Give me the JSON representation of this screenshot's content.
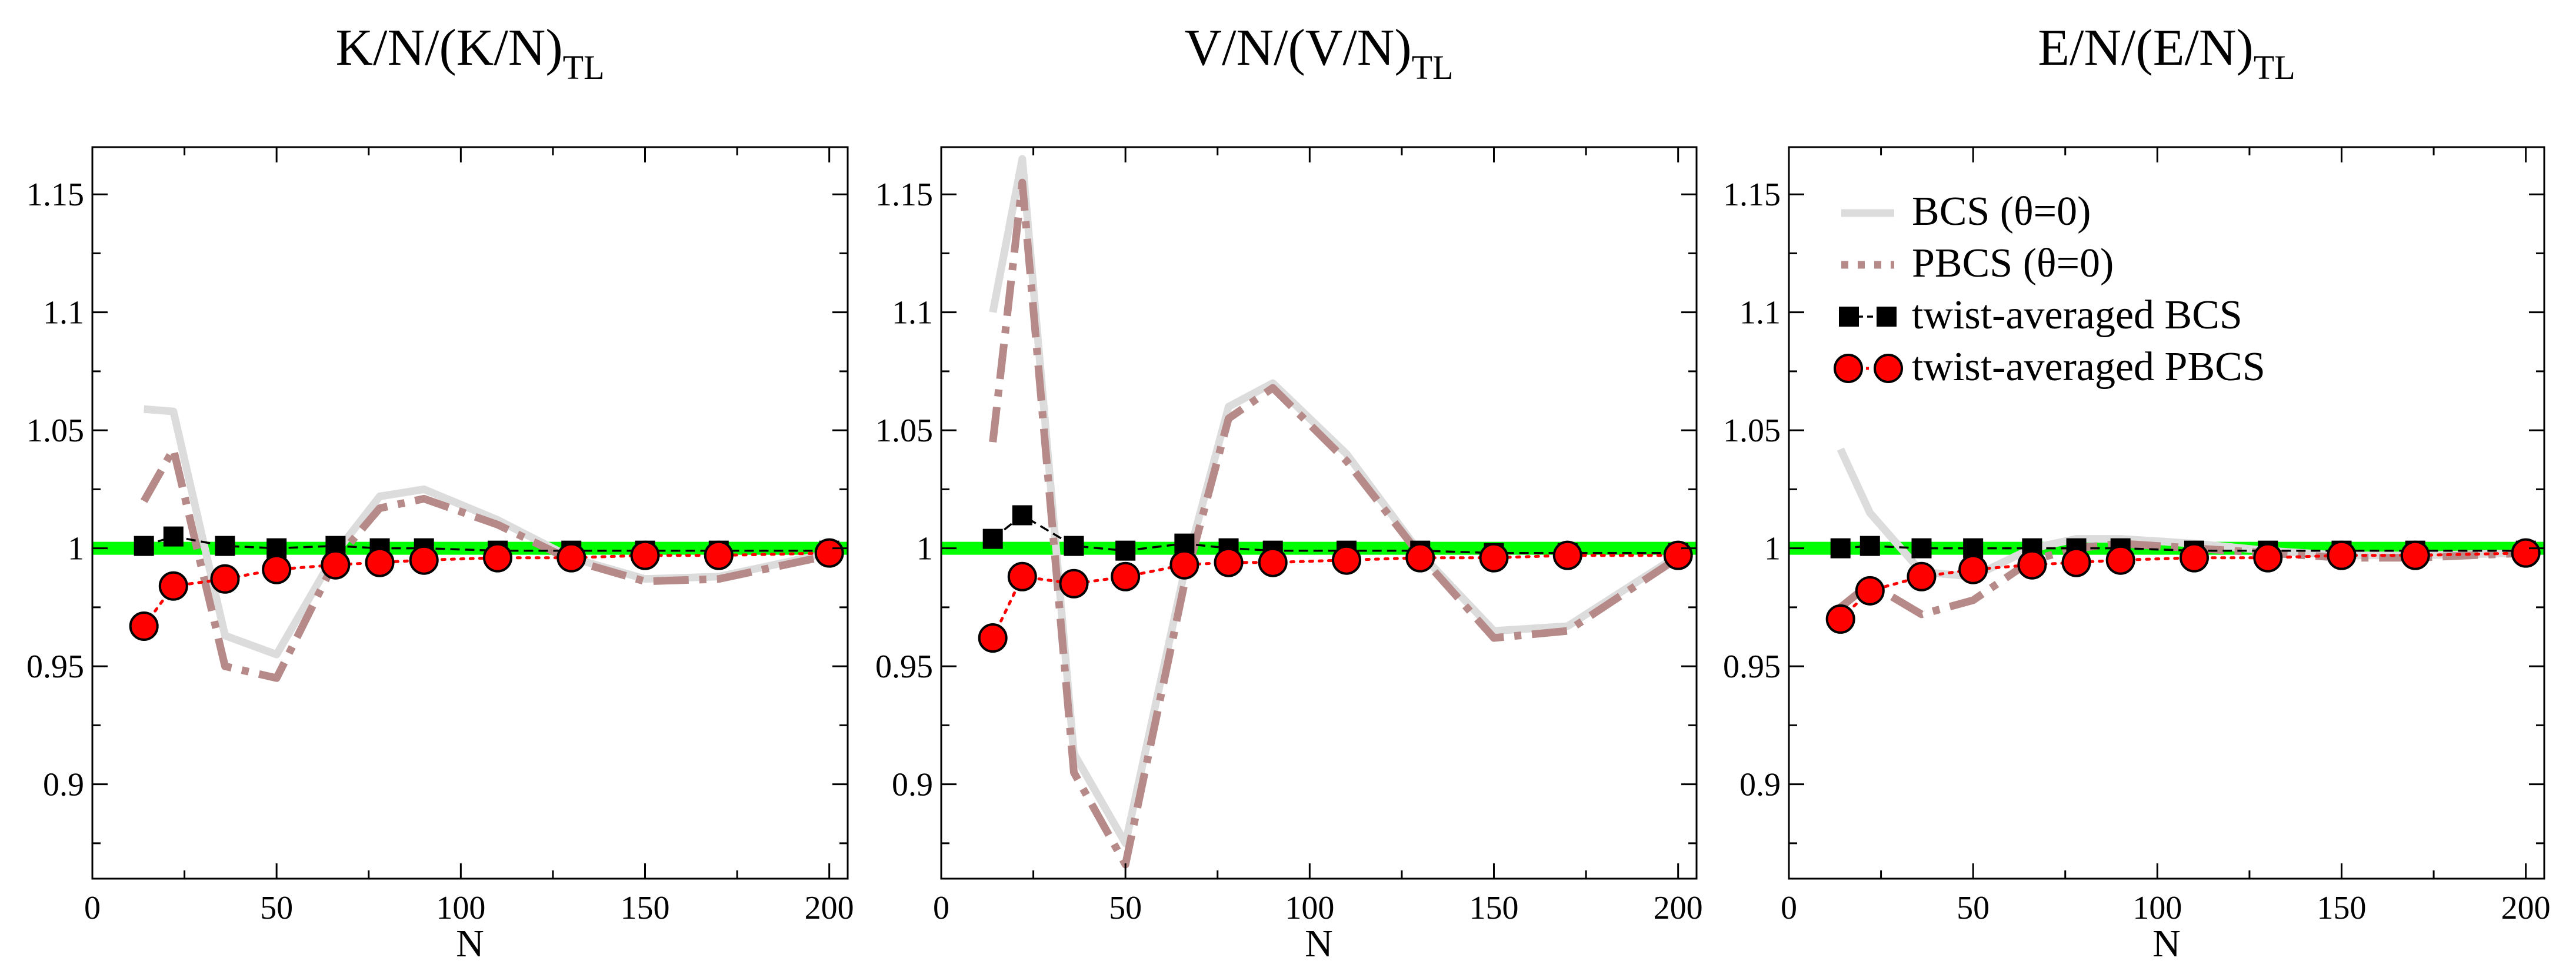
{
  "chart_data": [
    {
      "type": "line",
      "title_main": "K/N/(K/N)",
      "title_sub": "TL",
      "xlabel": "N",
      "ylabel": "",
      "xlim": [
        0,
        205
      ],
      "ylim": [
        0.86,
        1.17
      ],
      "xticks": [
        "0",
        "50",
        "100",
        "150",
        "200"
      ],
      "yticks": [
        "0.9",
        "0.95",
        "1",
        "1.05",
        "1.1",
        "1.15"
      ],
      "reference_line": 1.0,
      "series": [
        {
          "name": "BCS (θ=0)",
          "x": [
            14,
            22,
            36,
            50,
            66,
            78,
            90,
            110,
            130,
            150,
            170,
            200
          ],
          "y": [
            1.059,
            1.058,
            0.963,
            0.955,
            0.998,
            1.022,
            1.025,
            1.012,
            0.996,
            0.987,
            0.988,
            0.998
          ]
        },
        {
          "name": "PBCS (θ=0)",
          "x": [
            14,
            22,
            36,
            50,
            66,
            78,
            90,
            110,
            130,
            150,
            170,
            200
          ],
          "y": [
            1.02,
            1.042,
            0.95,
            0.945,
            0.995,
            1.017,
            1.021,
            1.01,
            0.995,
            0.986,
            0.987,
            0.997
          ]
        },
        {
          "name": "twist-averaged BCS",
          "x": [
            14,
            22,
            36,
            50,
            66,
            78,
            90,
            110,
            130,
            150,
            170,
            200
          ],
          "y": [
            1.001,
            1.005,
            1.001,
            1.0,
            1.001,
            1.0,
            1.0,
            0.999,
            0.999,
            0.999,
            0.999,
            0.999
          ]
        },
        {
          "name": "twist-averaged PBCS",
          "x": [
            14,
            22,
            36,
            50,
            66,
            78,
            90,
            110,
            130,
            150,
            170,
            200
          ],
          "y": [
            0.967,
            0.984,
            0.987,
            0.991,
            0.993,
            0.994,
            0.995,
            0.996,
            0.996,
            0.997,
            0.997,
            0.998
          ]
        }
      ]
    },
    {
      "type": "line",
      "title_main": "V/N/(V/N)",
      "title_sub": "TL",
      "xlabel": "N",
      "ylabel": "",
      "xlim": [
        0,
        205
      ],
      "ylim": [
        0.86,
        1.17
      ],
      "xticks": [
        "0",
        "50",
        "100",
        "150",
        "200"
      ],
      "yticks": [
        "0.9",
        "0.95",
        "1",
        "1.05",
        "1.1",
        "1.15"
      ],
      "reference_line": 1.0,
      "series": [
        {
          "name": "BCS (θ=0)",
          "x": [
            14,
            22,
            36,
            50,
            66,
            78,
            90,
            110,
            130,
            150,
            170,
            200
          ],
          "y": [
            1.1,
            1.165,
            0.913,
            0.875,
            0.99,
            1.06,
            1.07,
            1.04,
            0.998,
            0.965,
            0.967,
            0.997
          ]
        },
        {
          "name": "PBCS (θ=0)",
          "x": [
            14,
            22,
            36,
            50,
            66,
            78,
            90,
            110,
            130,
            150,
            170,
            200
          ],
          "y": [
            1.045,
            1.155,
            0.905,
            0.866,
            0.985,
            1.055,
            1.068,
            1.037,
            0.997,
            0.962,
            0.965,
            0.996
          ]
        },
        {
          "name": "twist-averaged BCS",
          "x": [
            14,
            22,
            36,
            50,
            66,
            78,
            90,
            110,
            130,
            150,
            170,
            200
          ],
          "y": [
            1.004,
            1.014,
            1.001,
            0.999,
            1.002,
            1.0,
            0.999,
            0.999,
            0.999,
            0.998,
            0.998,
            0.998
          ]
        },
        {
          "name": "twist-averaged PBCS",
          "x": [
            14,
            22,
            36,
            50,
            66,
            78,
            90,
            110,
            130,
            150,
            170,
            200
          ],
          "y": [
            0.962,
            0.988,
            0.985,
            0.988,
            0.993,
            0.994,
            0.994,
            0.995,
            0.996,
            0.996,
            0.997,
            0.997
          ]
        }
      ]
    },
    {
      "type": "line",
      "title_main": "E/N/(E/N)",
      "title_sub": "TL",
      "xlabel": "N",
      "ylabel": "",
      "xlim": [
        0,
        205
      ],
      "ylim": [
        0.86,
        1.17
      ],
      "xticks": [
        "0",
        "50",
        "100",
        "150",
        "200"
      ],
      "yticks": [
        "0.9",
        "0.95",
        "1",
        "1.05",
        "1.1",
        "1.15"
      ],
      "reference_line": 1.0,
      "legend_position": "top-left",
      "series": [
        {
          "name": "BCS (θ=0)",
          "x": [
            14,
            22,
            36,
            50,
            66,
            78,
            90,
            110,
            130,
            150,
            170,
            200
          ],
          "y": [
            1.042,
            1.015,
            0.99,
            0.988,
            1.0,
            1.004,
            1.004,
            1.002,
            0.999,
            0.997,
            0.997,
            0.998
          ]
        },
        {
          "name": "PBCS (θ=0)",
          "x": [
            14,
            22,
            36,
            50,
            66,
            78,
            90,
            110,
            130,
            150,
            170,
            200
          ],
          "y": [
            0.975,
            0.985,
            0.972,
            0.978,
            0.995,
            1.0,
            1.002,
            1.0,
            0.998,
            0.996,
            0.996,
            0.998
          ]
        },
        {
          "name": "twist-averaged BCS",
          "x": [
            14,
            22,
            36,
            50,
            66,
            78,
            90,
            110,
            130,
            150,
            170,
            200
          ],
          "y": [
            1.0,
            1.001,
            1.0,
            1.0,
            1.0,
            1.0,
            1.0,
            0.999,
            0.999,
            0.999,
            0.999,
            0.999
          ]
        },
        {
          "name": "twist-averaged PBCS",
          "x": [
            14,
            22,
            36,
            50,
            66,
            78,
            90,
            110,
            130,
            150,
            170,
            200
          ],
          "y": [
            0.97,
            0.982,
            0.988,
            0.991,
            0.993,
            0.994,
            0.995,
            0.996,
            0.996,
            0.997,
            0.997,
            0.998
          ]
        }
      ]
    }
  ],
  "legend": {
    "items": [
      "BCS (θ=0)",
      "PBCS (θ=0)",
      "twist-averaged BCS",
      "twist-averaged PBCS"
    ]
  },
  "colors": {
    "bcs": "#dcdcdc",
    "pbcs": "#b58a88",
    "ta_bcs": "#000000",
    "ta_pbcs": "#ff0000",
    "reference": "#00ff00"
  }
}
